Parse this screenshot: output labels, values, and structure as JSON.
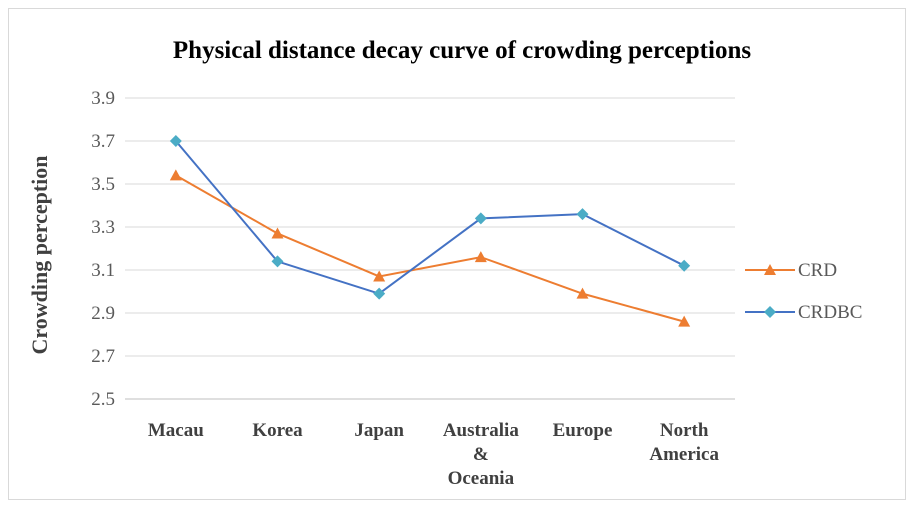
{
  "chart_data": {
    "type": "line",
    "title": "Physical distance decay curve of crowding perceptions",
    "xlabel": "",
    "ylabel": "Crowding perception",
    "ylim": [
      2.5,
      3.9
    ],
    "yticks": [
      "2.5",
      "2.7",
      "2.9",
      "3.1",
      "3.3",
      "3.5",
      "3.7",
      "3.9"
    ],
    "categories": [
      [
        "Macau"
      ],
      [
        "Korea"
      ],
      [
        "Japan"
      ],
      [
        "Australia",
        "&",
        "Oceania"
      ],
      [
        "Europe"
      ],
      [
        "North",
        "America"
      ]
    ],
    "series": [
      {
        "name": "CRD",
        "color": "#ED7D31",
        "marker": "triangle",
        "values": [
          3.54,
          3.27,
          3.07,
          3.16,
          2.99,
          2.86
        ]
      },
      {
        "name": "CRDBC",
        "color": "#4472C4",
        "marker_color": "#4BACC6",
        "marker": "diamond",
        "values": [
          3.7,
          3.14,
          2.99,
          3.34,
          3.36,
          3.12
        ]
      }
    ],
    "grid": true,
    "legend_position": "right"
  }
}
